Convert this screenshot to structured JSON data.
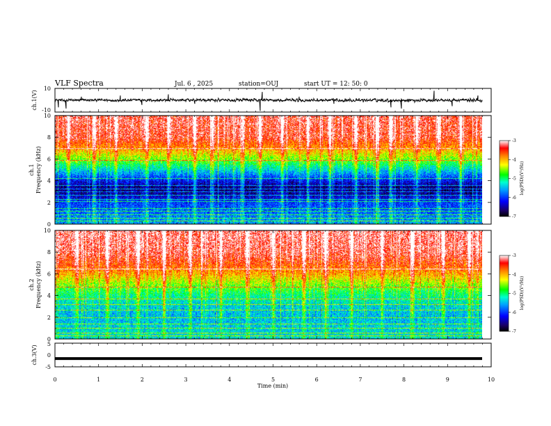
{
  "header": {
    "title": "VLF Spectra",
    "date": "Jul. 6 , 2025",
    "station": "station=OUJ",
    "start": "start UT = 12: 50: 0"
  },
  "chart_data": [
    {
      "type": "line",
      "name": "ch1-waveform",
      "ylabel": "ch.1(V)",
      "ylim": [
        -10,
        10
      ],
      "yticks": [
        "10",
        "-10"
      ],
      "xlim": [
        0,
        10
      ],
      "baseline": 0,
      "spikes": [
        {
          "x": 0.08,
          "y": -6
        },
        {
          "x": 0.26,
          "y": -7
        },
        {
          "x": 0.6,
          "y": 3
        },
        {
          "x": 1.5,
          "y": 4
        },
        {
          "x": 2.0,
          "y": -4
        },
        {
          "x": 2.6,
          "y": 5
        },
        {
          "x": 3.2,
          "y": -3
        },
        {
          "x": 4.7,
          "y": -9
        },
        {
          "x": 4.75,
          "y": 7
        },
        {
          "x": 5.6,
          "y": 3
        },
        {
          "x": 6.4,
          "y": -3
        },
        {
          "x": 7.7,
          "y": -6
        },
        {
          "x": 7.95,
          "y": -7
        },
        {
          "x": 8.7,
          "y": 8
        },
        {
          "x": 9.1,
          "y": -5
        },
        {
          "x": 9.7,
          "y": 4
        }
      ]
    },
    {
      "type": "heatmap",
      "name": "ch1-spectrogram",
      "ylabel": "ch.1 Frequency (kHz)",
      "ylim": [
        0,
        10
      ],
      "yticks": [
        "0",
        "2",
        "4",
        "6",
        "8",
        "10"
      ],
      "xlim": [
        0,
        10
      ],
      "colorbar": {
        "label": "log(PSD)(V²/Hz)",
        "range": [
          -7,
          -3
        ],
        "ticks": [
          "-3",
          "-4",
          "-5",
          "-6",
          "-7"
        ]
      },
      "profile_khz": [
        0,
        1,
        2,
        3,
        3.5,
        4,
        5,
        6,
        7,
        8,
        10
      ],
      "profile_level": [
        -5.6,
        -5.8,
        -6.0,
        -6.6,
        -6.6,
        -6.2,
        -5.4,
        -4.6,
        -3.9,
        -3.4,
        -3.3
      ],
      "lines_khz": [
        0.3,
        0.6,
        0.9,
        1.2,
        1.5,
        2.1,
        2.3,
        2.7,
        3.0,
        3.3,
        3.6,
        4.2,
        5.9,
        7.0
      ],
      "bursts_min": [
        0.3,
        0.9,
        1.4,
        2.1,
        2.6,
        3.2,
        3.6,
        4.3,
        4.7,
        5.2,
        5.8,
        6.3,
        6.9,
        7.4,
        7.7,
        8.3,
        8.8,
        9.3
      ]
    },
    {
      "type": "heatmap",
      "name": "ch2-spectrogram",
      "ylabel": "ch.2 Frequency (kHz)",
      "ylim": [
        0,
        10
      ],
      "yticks": [
        "0",
        "2",
        "4",
        "6",
        "8",
        "10"
      ],
      "xlim": [
        0,
        10
      ],
      "colorbar": {
        "label": "log(PSD)(V²/Hz)",
        "range": [
          -7,
          -3
        ],
        "ticks": [
          "-3",
          "-4",
          "-5",
          "-6",
          "-7"
        ]
      },
      "profile_khz": [
        0,
        1,
        2,
        3,
        4,
        5,
        6,
        7,
        8,
        10
      ],
      "profile_level": [
        -5.3,
        -5.4,
        -5.5,
        -5.4,
        -5.1,
        -4.6,
        -4.0,
        -3.6,
        -3.3,
        -3.2
      ],
      "lines_khz": [
        0.3,
        0.6,
        1.0,
        1.4,
        2.0,
        2.7,
        3.2,
        3.7,
        4.8,
        6.5
      ],
      "bursts_min": [
        0.5,
        1.2,
        1.9,
        2.5,
        3.1,
        3.8,
        4.4,
        5.0,
        5.7,
        6.2,
        6.8,
        7.5,
        8.2,
        8.9,
        9.5
      ]
    },
    {
      "type": "line",
      "name": "ch3-waveform",
      "ylabel": "ch.3(V)",
      "ylim": [
        -5,
        5
      ],
      "yticks": [
        "5",
        "0",
        "-5"
      ],
      "xlim": [
        0,
        10
      ],
      "baseline": -1.5,
      "xlabel": "Time (min)",
      "xticks": [
        "0",
        "1",
        "2",
        "3",
        "4",
        "5",
        "6",
        "7",
        "8",
        "9",
        "10"
      ]
    }
  ]
}
